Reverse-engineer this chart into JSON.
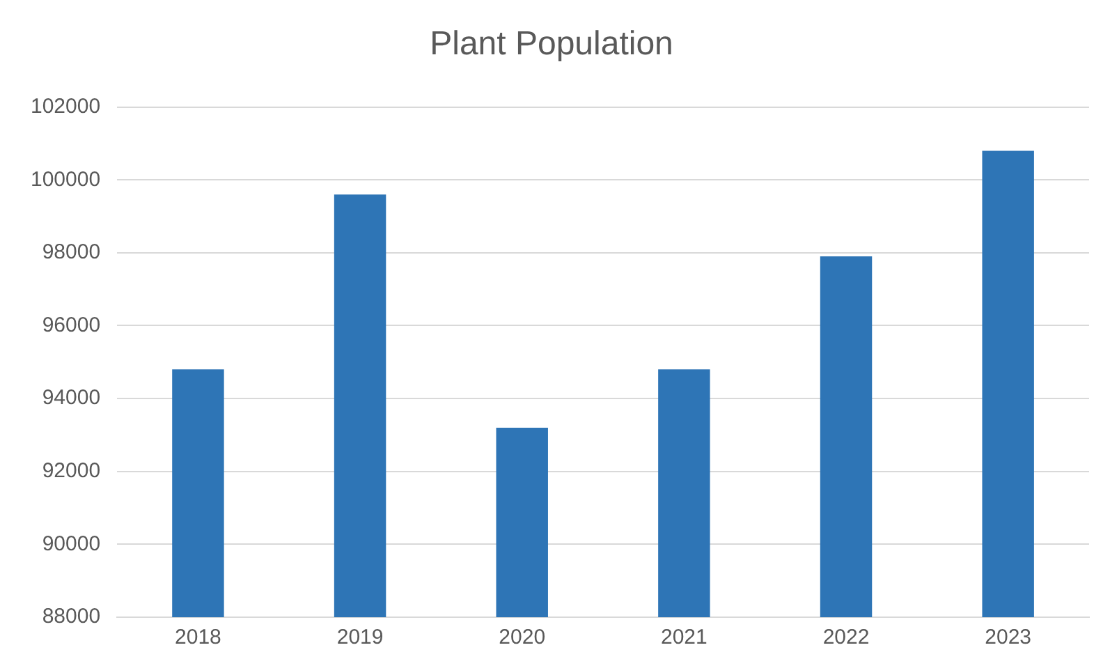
{
  "chart_data": {
    "type": "bar",
    "title": "Plant Population",
    "categories": [
      "2018",
      "2019",
      "2020",
      "2021",
      "2022",
      "2023"
    ],
    "values": [
      94800,
      99600,
      93200,
      94800,
      97900,
      100800
    ],
    "color": "#2e75b6",
    "ylim": [
      88000,
      102000
    ],
    "yticks": [
      88000,
      90000,
      92000,
      94000,
      96000,
      98000,
      100000,
      102000
    ],
    "grid": "y",
    "legend": false
  }
}
